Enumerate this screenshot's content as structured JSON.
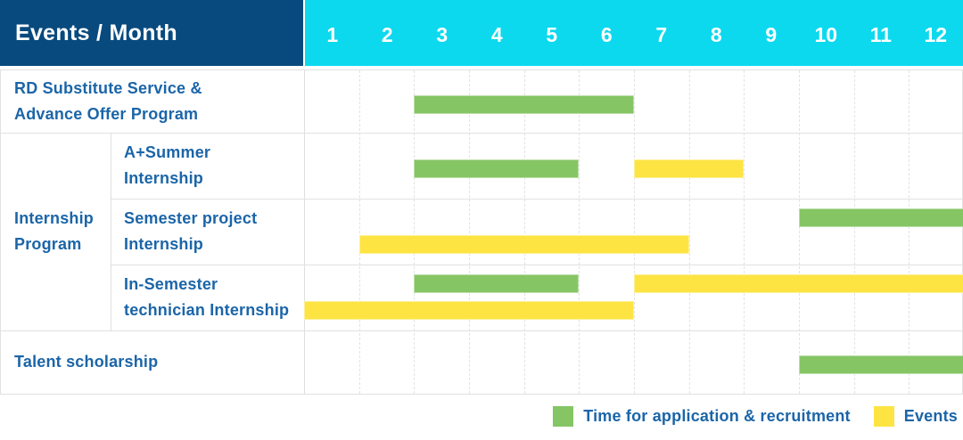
{
  "header": {
    "title": "Events / Month",
    "months": [
      "1",
      "2",
      "3",
      "4",
      "5",
      "6",
      "7",
      "8",
      "9",
      "10",
      "11",
      "12"
    ]
  },
  "colors": {
    "header_navy": "#084a7e",
    "header_cyan": "#0cd9ee",
    "bar_green": "#85c564",
    "bar_yellow": "#fde443",
    "text_blue": "#1b65a8",
    "grid_line": "#e1e1e1"
  },
  "legend": {
    "items": [
      {
        "key": "application",
        "label": "Time for application & recruitment",
        "color": "#85c564"
      },
      {
        "key": "event",
        "label": "Events",
        "color": "#fde443"
      }
    ]
  },
  "chart_data": {
    "type": "table",
    "subtype": "gantt",
    "title": "Events / Month",
    "x_unit": "month",
    "x_ticks": [
      1,
      2,
      3,
      4,
      5,
      6,
      7,
      8,
      9,
      10,
      11,
      12
    ],
    "legend": [
      {
        "key": "application",
        "label": "Time for application & recruitment",
        "color": "#85c564"
      },
      {
        "key": "event",
        "label": "Events",
        "color": "#fde443"
      }
    ],
    "rows": [
      {
        "group": "",
        "label": "RD Substitute Service &\nAdvance Offer Program",
        "bars": [
          {
            "kind": "application",
            "start_month": 3,
            "end_month": 6,
            "line": "center"
          }
        ]
      },
      {
        "group": "Internship Program",
        "label": "A+Summer\nInternship",
        "bars": [
          {
            "kind": "application",
            "start_month": 3,
            "end_month": 5,
            "line": "center"
          },
          {
            "kind": "event",
            "start_month": 7,
            "end_month": 8,
            "line": "center"
          }
        ]
      },
      {
        "group": "Internship Program",
        "label": "Semester project\nInternship",
        "bars": [
          {
            "kind": "application",
            "start_month": 10,
            "end_month": 12,
            "line": "top"
          },
          {
            "kind": "event",
            "start_month": 2,
            "end_month": 7,
            "line": "bottom"
          }
        ]
      },
      {
        "group": "Internship Program",
        "label": "In-Semester\ntechnician Internship",
        "bars": [
          {
            "kind": "application",
            "start_month": 3,
            "end_month": 5,
            "line": "top"
          },
          {
            "kind": "event",
            "start_month": 7,
            "end_month": 12,
            "line": "top"
          },
          {
            "kind": "event",
            "start_month": 1,
            "end_month": 6,
            "line": "bottom"
          }
        ]
      },
      {
        "group": "",
        "label": "Talent scholarship",
        "bars": [
          {
            "kind": "application",
            "start_month": 10,
            "end_month": 12,
            "line": "center"
          }
        ]
      }
    ]
  }
}
